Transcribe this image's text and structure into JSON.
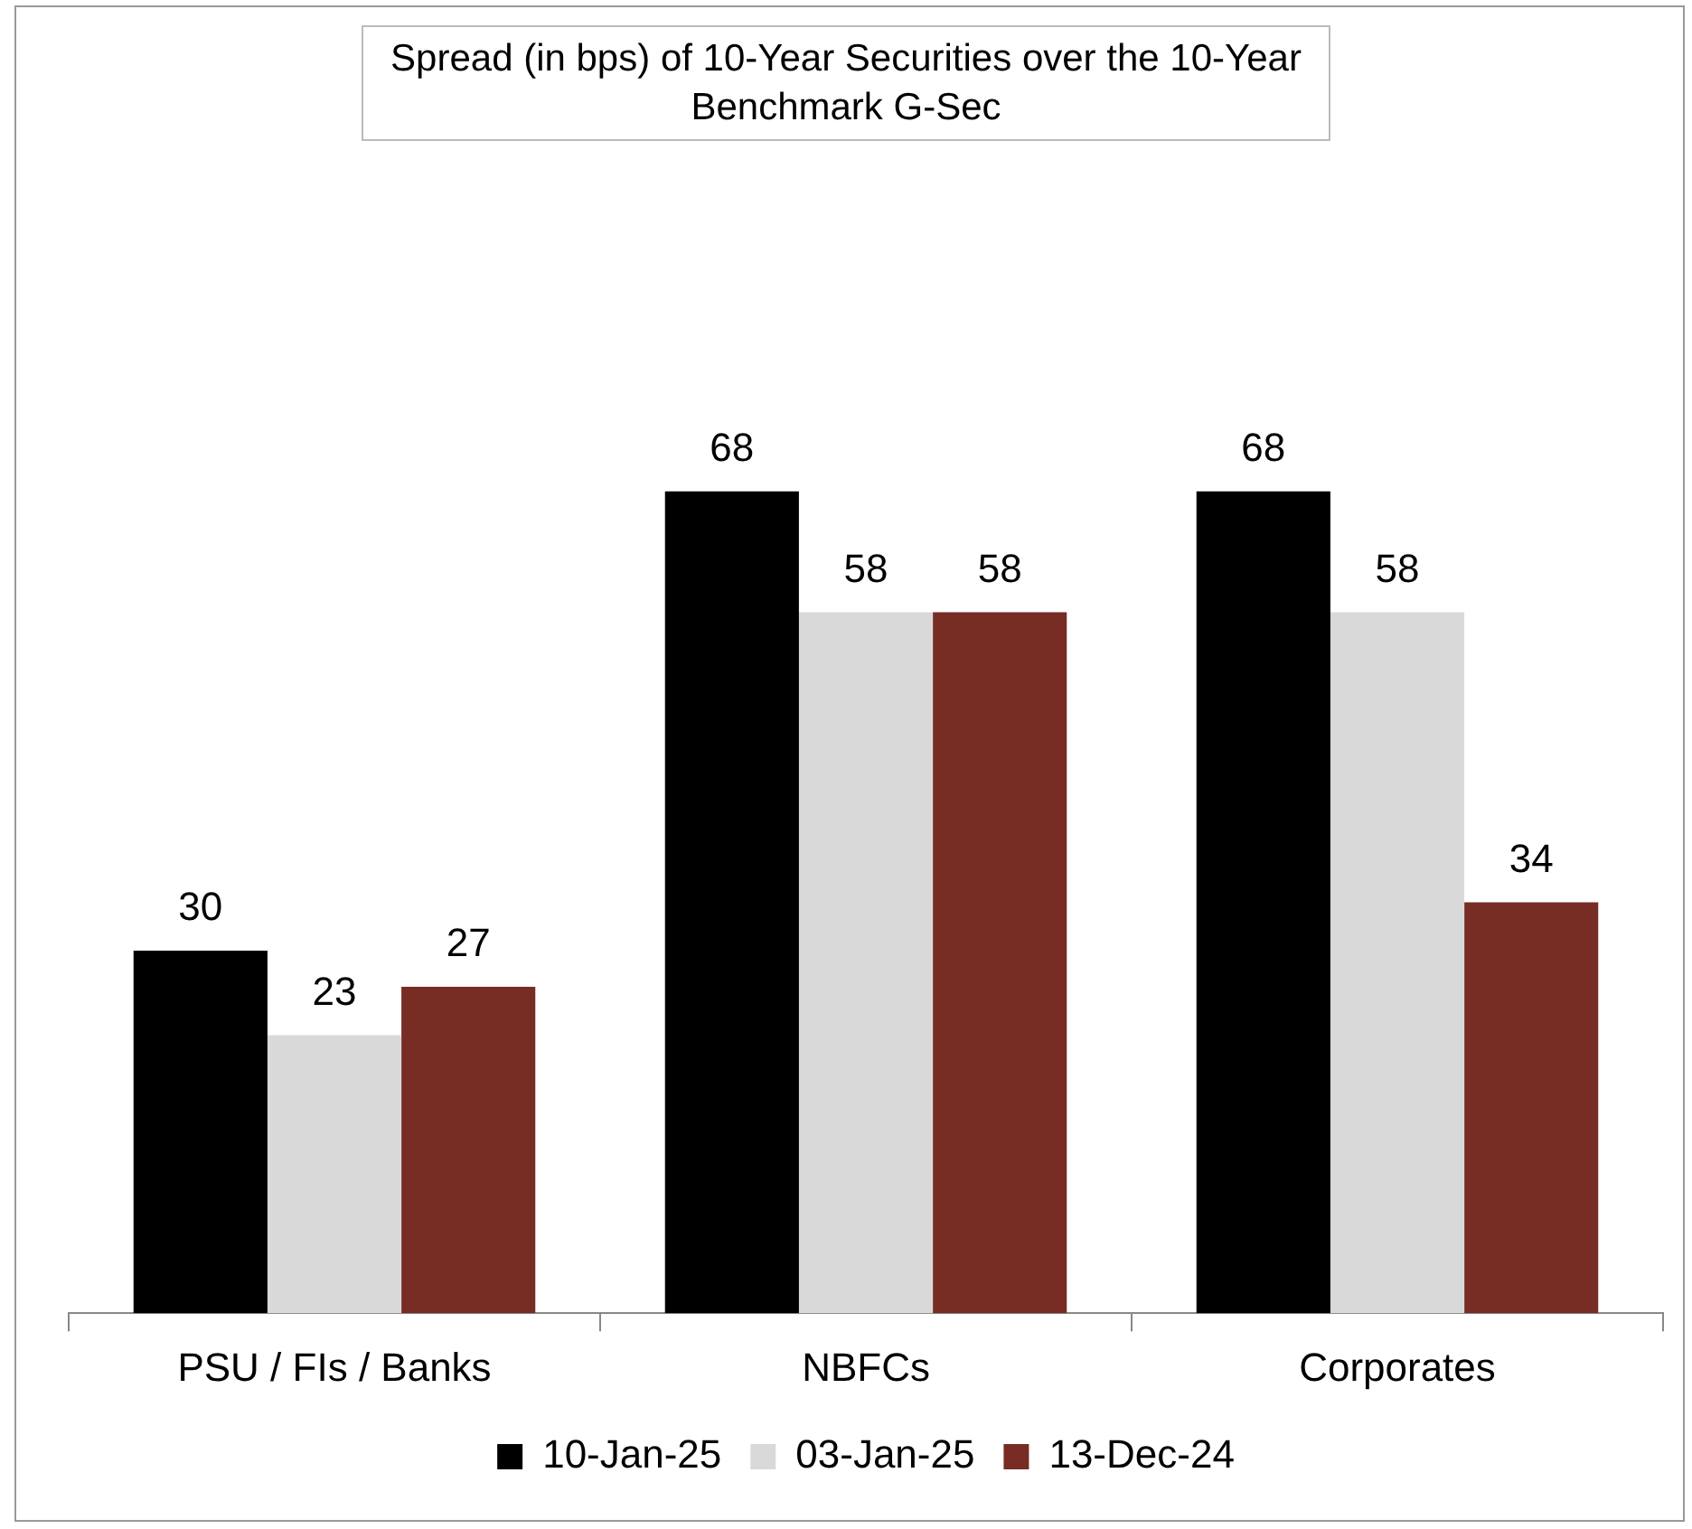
{
  "chart_data": {
    "type": "bar",
    "title": "Spread (in bps) of 10-Year Securities over the 10-Year Benchmark G-Sec",
    "categories": [
      "PSU / FIs / Banks",
      "NBFCs",
      "Corporates"
    ],
    "series": [
      {
        "name": "10-Jan-25",
        "color": "#000000",
        "values": [
          30,
          68,
          68
        ]
      },
      {
        "name": "03-Jan-25",
        "color": "#d9d9d9",
        "values": [
          23,
          58,
          58
        ]
      },
      {
        "name": "13-Dec-24",
        "color": "#772c24",
        "values": [
          27,
          58,
          34
        ]
      }
    ],
    "data_labels": true,
    "legend": "bottom"
  }
}
